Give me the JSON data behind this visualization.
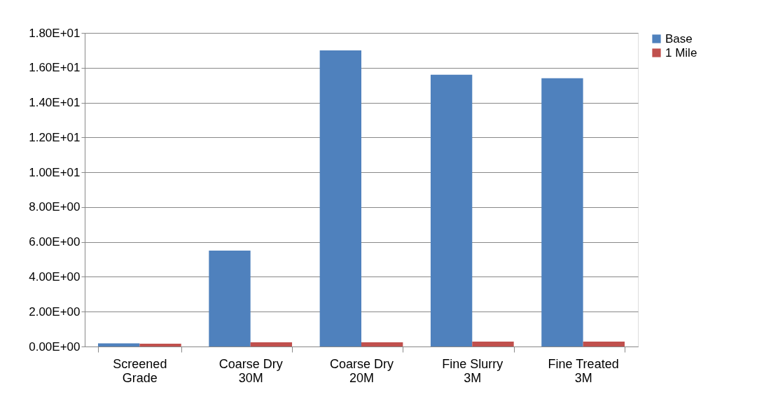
{
  "chart_data": {
    "type": "bar",
    "categories": [
      "Screened Grade",
      "Coarse Dry 30M",
      "Coarse Dry 20M",
      "Fine Slurry 3M",
      "Fine Treated 3M"
    ],
    "series": [
      {
        "name": "Base",
        "color": "#4f81bd",
        "values": [
          0.18,
          5.5,
          17.0,
          15.6,
          15.4
        ]
      },
      {
        "name": "1 Mile",
        "color": "#c0504d",
        "values": [
          0.16,
          0.24,
          0.24,
          0.28,
          0.28
        ]
      }
    ],
    "ylim": [
      0,
      18
    ],
    "yticks": [
      {
        "value": 0,
        "label": "0.00E+00"
      },
      {
        "value": 2,
        "label": "2.00E+00"
      },
      {
        "value": 4,
        "label": "4.00E+00"
      },
      {
        "value": 6,
        "label": "6.00E+00"
      },
      {
        "value": 8,
        "label": "8.00E+00"
      },
      {
        "value": 10,
        "label": "1.00E+01"
      },
      {
        "value": 12,
        "label": "1.20E+01"
      },
      {
        "value": 14,
        "label": "1.40E+01"
      },
      {
        "value": 16,
        "label": "1.60E+01"
      },
      {
        "value": 18,
        "label": "1.80E+01"
      }
    ],
    "grid": "y",
    "legend": "right"
  }
}
